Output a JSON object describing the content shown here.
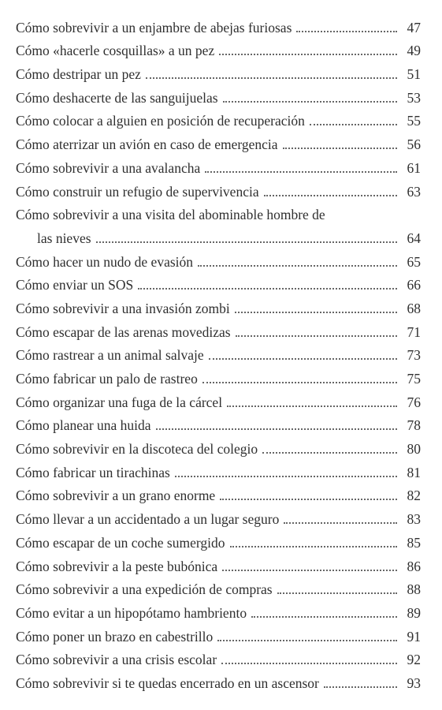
{
  "entries": [
    {
      "lines": [
        "Cómo sobrevivir a un enjambre de abejas furiosas"
      ],
      "page": "47"
    },
    {
      "lines": [
        "Cómo «hacerle cosquillas» a un pez"
      ],
      "page": "49"
    },
    {
      "lines": [
        "Cómo destripar un pez"
      ],
      "page": "51"
    },
    {
      "lines": [
        "Cómo deshacerte de las sanguijuelas"
      ],
      "page": "53"
    },
    {
      "lines": [
        "Cómo colocar a alguien en posición de recuperación"
      ],
      "page": "55"
    },
    {
      "lines": [
        "Cómo aterrizar un avión en caso de emergencia"
      ],
      "page": "56"
    },
    {
      "lines": [
        "Cómo sobrevivir a una avalancha"
      ],
      "page": "61"
    },
    {
      "lines": [
        "Cómo construir un refugio de supervivencia"
      ],
      "page": "63"
    },
    {
      "lines": [
        "Cómo sobrevivir a una visita del abominable hombre de",
        "las nieves"
      ],
      "page": "64"
    },
    {
      "lines": [
        "Cómo hacer un nudo de evasión"
      ],
      "page": "65"
    },
    {
      "lines": [
        "Cómo enviar un SOS"
      ],
      "page": "66"
    },
    {
      "lines": [
        "Cómo sobrevivir a una invasión zombi"
      ],
      "page": "68"
    },
    {
      "lines": [
        "Cómo escapar de las arenas movedizas"
      ],
      "page": "71"
    },
    {
      "lines": [
        "Cómo rastrear a un animal salvaje"
      ],
      "page": "73"
    },
    {
      "lines": [
        "Cómo fabricar un palo de rastreo"
      ],
      "page": "75"
    },
    {
      "lines": [
        "Cómo organizar una fuga de la cárcel"
      ],
      "page": "76"
    },
    {
      "lines": [
        "Cómo planear una huida"
      ],
      "page": "78"
    },
    {
      "lines": [
        "Cómo sobrevivir en la discoteca del colegio"
      ],
      "page": "80"
    },
    {
      "lines": [
        "Cómo fabricar un tirachinas"
      ],
      "page": "81"
    },
    {
      "lines": [
        "Cómo sobrevivir a un grano enorme"
      ],
      "page": "82"
    },
    {
      "lines": [
        "Cómo llevar a un accidentado a un lugar seguro"
      ],
      "page": "83"
    },
    {
      "lines": [
        "Cómo escapar de un coche sumergido"
      ],
      "page": "85"
    },
    {
      "lines": [
        "Cómo sobrevivir a la peste bubónica"
      ],
      "page": "86"
    },
    {
      "lines": [
        "Cómo sobrevivir a una expedición de compras"
      ],
      "page": "88"
    },
    {
      "lines": [
        "Cómo evitar a un hipopótamo hambriento"
      ],
      "page": "89"
    },
    {
      "lines": [
        "Cómo poner un brazo en cabestrillo"
      ],
      "page": "91"
    },
    {
      "lines": [
        "Cómo sobrevivir a una crisis escolar"
      ],
      "page": "92"
    },
    {
      "lines": [
        "Cómo sobrevivir si te quedas encerrado en un ascensor"
      ],
      "page": "93"
    }
  ]
}
